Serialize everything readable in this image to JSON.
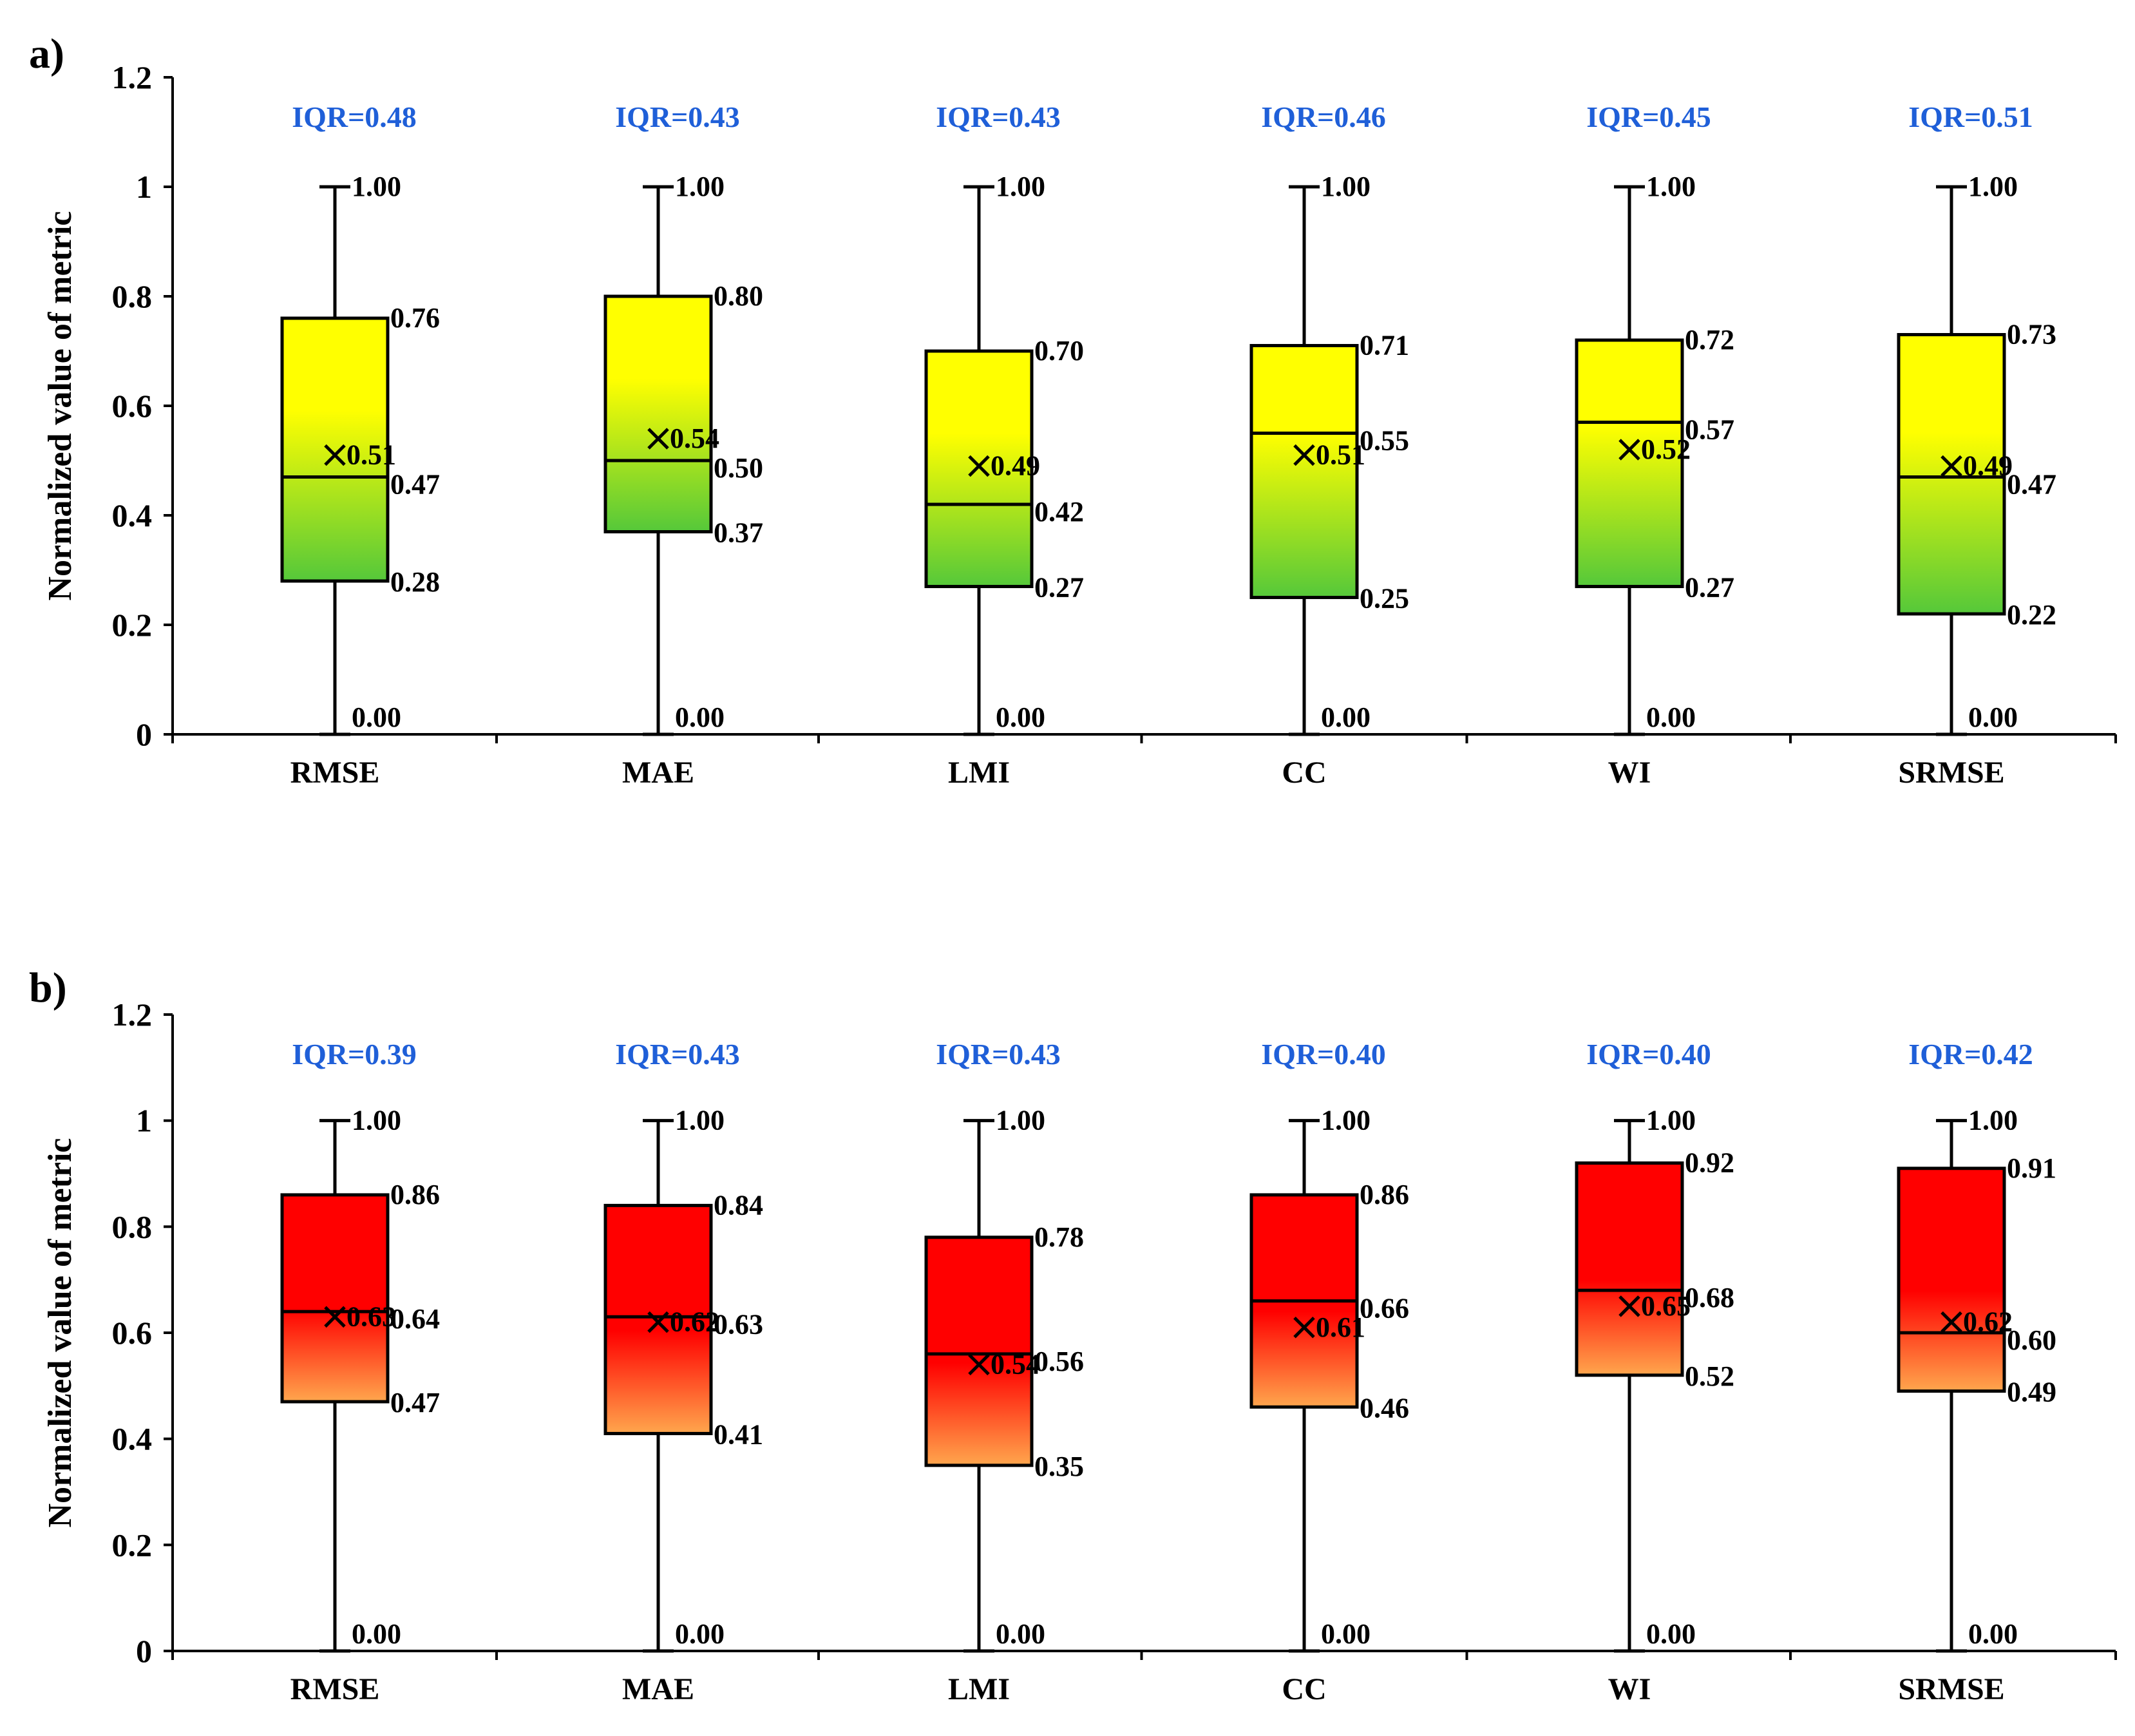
{
  "chart_data": [
    {
      "type": "boxplot",
      "panel_label": "a)",
      "ylabel": "Normalized value of  metric",
      "ylim": [
        0,
        1.2
      ],
      "yticks": [
        "0",
        "0.2",
        "0.4",
        "0.6",
        "0.8",
        "1",
        "1.2"
      ],
      "color_top": "#ffff00",
      "color_bottom": "#55c83a",
      "categories": [
        "RMSE",
        "MAE",
        "LMI",
        "CC",
        "WI",
        "SRMSE"
      ],
      "boxes": [
        {
          "name": "RMSE",
          "min": 0.0,
          "q1": 0.28,
          "median": 0.47,
          "q3": 0.76,
          "max": 1.0,
          "mean": 0.51,
          "iqr": "IQR=0.48",
          "labels": {
            "min": "0.00",
            "q1": "0.28",
            "median": "0.47",
            "q3": "0.76",
            "max": "1.00",
            "mean": "0.51"
          }
        },
        {
          "name": "MAE",
          "min": 0.0,
          "q1": 0.37,
          "median": 0.5,
          "q3": 0.8,
          "max": 1.0,
          "mean": 0.54,
          "iqr": "IQR=0.43",
          "labels": {
            "min": "0.00",
            "q1": "0.37",
            "median": "0.50",
            "q3": "0.80",
            "max": "1.00",
            "mean": "0.54"
          }
        },
        {
          "name": "LMI",
          "min": 0.0,
          "q1": 0.27,
          "median": 0.42,
          "q3": 0.7,
          "max": 1.0,
          "mean": 0.49,
          "iqr": "IQR=0.43",
          "labels": {
            "min": "0.00",
            "q1": "0.27",
            "median": "0.42",
            "q3": "0.70",
            "max": "1.00",
            "mean": "0.49"
          }
        },
        {
          "name": "CC",
          "min": 0.0,
          "q1": 0.25,
          "median": 0.55,
          "q3": 0.71,
          "max": 1.0,
          "mean": 0.51,
          "iqr": "IQR=0.46",
          "labels": {
            "min": "0.00",
            "q1": "0.25",
            "median": "0.55",
            "q3": "0.71",
            "max": "1.00",
            "mean": "0.51"
          }
        },
        {
          "name": "WI",
          "min": 0.0,
          "q1": 0.27,
          "median": 0.57,
          "q3": 0.72,
          "max": 1.0,
          "mean": 0.52,
          "iqr": "IQR=0.45",
          "labels": {
            "min": "0.00",
            "q1": "0.27",
            "median": "0.57",
            "q3": "0.72",
            "max": "1.00",
            "mean": "0.52"
          }
        },
        {
          "name": "SRMSE",
          "min": 0.0,
          "q1": 0.22,
          "median": 0.47,
          "q3": 0.73,
          "max": 1.0,
          "mean": 0.49,
          "iqr": "IQR=0.51",
          "labels": {
            "min": "0.00",
            "q1": "0.22",
            "median": "0.47",
            "q3": "0.73",
            "max": "1.00",
            "mean": "0.49"
          }
        }
      ]
    },
    {
      "type": "boxplot",
      "panel_label": "b)",
      "ylabel": "Normalized value of  metric",
      "ylim": [
        0,
        1.2
      ],
      "yticks": [
        "0",
        "0.2",
        "0.4",
        "0.6",
        "0.8",
        "1",
        "1.2"
      ],
      "color_top": "#ff0000",
      "color_bottom": "#ffa64d",
      "categories": [
        "RMSE",
        "MAE",
        "LMI",
        "CC",
        "WI",
        "SRMSE"
      ],
      "boxes": [
        {
          "name": "RMSE",
          "min": 0.0,
          "q1": 0.47,
          "median": 0.64,
          "q3": 0.86,
          "max": 1.0,
          "mean": 0.63,
          "iqr": "IQR=0.39",
          "labels": {
            "min": "0.00",
            "q1": "0.47",
            "median": "0.64",
            "q3": "0.86",
            "max": "1.00",
            "mean": "0.63"
          }
        },
        {
          "name": "MAE",
          "min": 0.0,
          "q1": 0.41,
          "median": 0.63,
          "q3": 0.84,
          "max": 1.0,
          "mean": 0.62,
          "iqr": "IQR=0.43",
          "labels": {
            "min": "0.00",
            "q1": "0.41",
            "median": "0.63",
            "q3": "0.84",
            "max": "1.00",
            "mean": "0.62"
          }
        },
        {
          "name": "LMI",
          "min": 0.0,
          "q1": 0.35,
          "median": 0.56,
          "q3": 0.78,
          "max": 1.0,
          "mean": 0.54,
          "iqr": "IQR=0.43",
          "labels": {
            "min": "0.00",
            "q1": "0.35",
            "median": "0.56",
            "q3": "0.78",
            "max": "1.00",
            "mean": "0.54"
          }
        },
        {
          "name": "CC",
          "min": 0.0,
          "q1": 0.46,
          "median": 0.66,
          "q3": 0.86,
          "max": 1.0,
          "mean": 0.61,
          "iqr": "IQR=0.40",
          "labels": {
            "min": "0.00",
            "q1": "0.46",
            "median": "0.66",
            "q3": "0.86",
            "max": "1.00",
            "mean": "0.61"
          }
        },
        {
          "name": "WI",
          "min": 0.0,
          "q1": 0.52,
          "median": 0.68,
          "q3": 0.92,
          "max": 1.0,
          "mean": 0.65,
          "iqr": "IQR=0.40",
          "labels": {
            "min": "0.00",
            "q1": "0.52",
            "median": "0.68",
            "q3": "0.92",
            "max": "1.00",
            "mean": "0.65"
          }
        },
        {
          "name": "SRMSE",
          "min": 0.0,
          "q1": 0.49,
          "median": 0.6,
          "q3": 0.91,
          "max": 1.0,
          "mean": 0.62,
          "iqr": "IQR=0.42",
          "labels": {
            "min": "0.00",
            "q1": "0.49",
            "median": "0.60",
            "q3": "0.91",
            "max": "1.00",
            "mean": "0.62"
          }
        }
      ]
    }
  ]
}
